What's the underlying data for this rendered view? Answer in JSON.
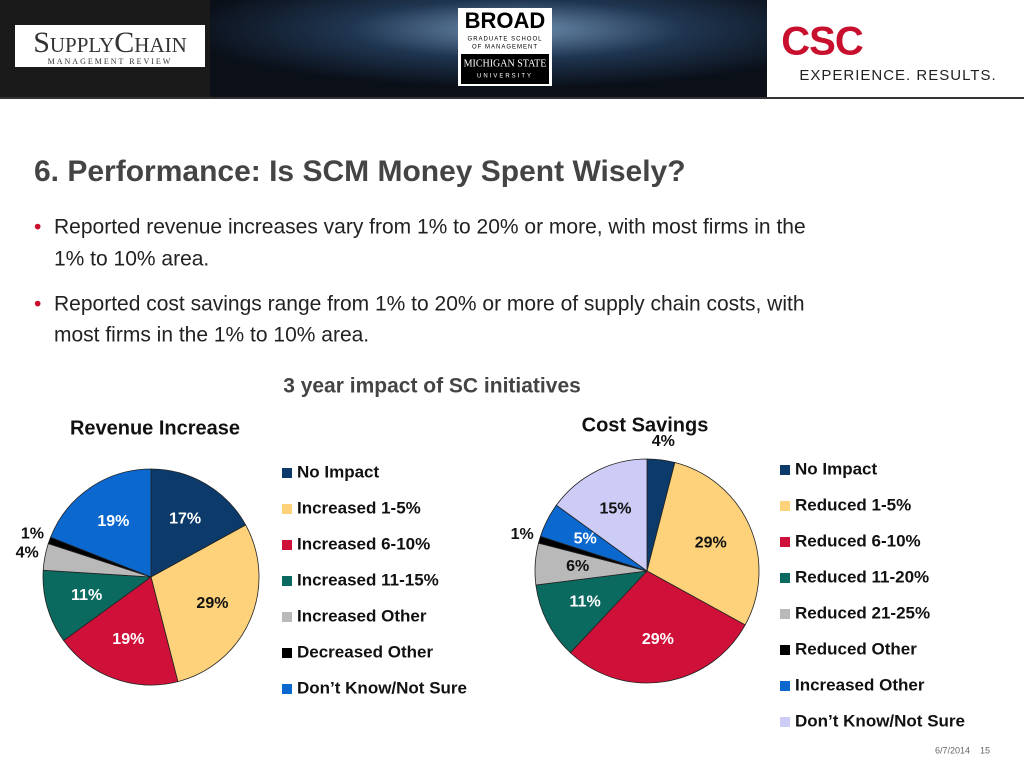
{
  "header": {
    "left_logo": {
      "name": "SupplyChain",
      "sub": "MANAGEMENT REVIEW"
    },
    "center_logo": {
      "name": "BROAD",
      "line1": "GRADUATE SCHOOL",
      "line2": "OF MANAGEMENT",
      "line3": "MICHIGAN STATE",
      "line4": "UNIVERSITY"
    },
    "right_logo": {
      "name": "CSC",
      "tagline": "EXPERIENCE. RESULTS."
    }
  },
  "title": "6. Performance: Is SCM Money Spent Wisely?",
  "bullets": [
    [
      "Reported revenue increases vary from 1% to 20% or more, with most firms in the",
      "1% to 10% area."
    ],
    [
      "Reported cost savings range from 1% to 20% or more of supply chain costs, with",
      "most firms in the 1% to 10% area."
    ]
  ],
  "charts_title": "3 year impact of SC initiatives",
  "chart_data": [
    {
      "type": "pie",
      "title": "Revenue Increase",
      "categories": [
        "No Impact",
        "Increased 1-5%",
        "Increased 6-10%",
        "Increased 11-15%",
        "Increased Other",
        "Decreased Other",
        "Don’t Know/Not Sure"
      ],
      "values": [
        17,
        29,
        19,
        11,
        4,
        1,
        19
      ],
      "value_labels": [
        "17%",
        "29%",
        "19%",
        "11%",
        "4%",
        "1%",
        "19%"
      ],
      "colors": [
        "#0b3a6b",
        "#fdd27b",
        "#cf1139",
        "#0b6a60",
        "#b9b9b9",
        "#000000",
        "#0a68cf"
      ]
    },
    {
      "type": "pie",
      "title": "Cost Savings",
      "categories": [
        "No Impact",
        "Reduced 1-5%",
        "Reduced 6-10%",
        "Reduced 11-20%",
        "Reduced 21-25%",
        "Reduced Other",
        "Increased Other",
        "Don’t Know/Not Sure"
      ],
      "values": [
        4,
        29,
        29,
        11,
        6,
        1,
        5,
        15
      ],
      "value_labels": [
        "4%",
        "29%",
        "29%",
        "11%",
        "6%",
        "1%",
        "5%",
        "15%"
      ],
      "colors": [
        "#0b3a6b",
        "#fdd27b",
        "#cf1139",
        "#0b6a60",
        "#b9b9b9",
        "#000000",
        "#0a68cf",
        "#ccccf6"
      ]
    }
  ],
  "footer": {
    "date": "6/7/2014",
    "page": "15"
  }
}
